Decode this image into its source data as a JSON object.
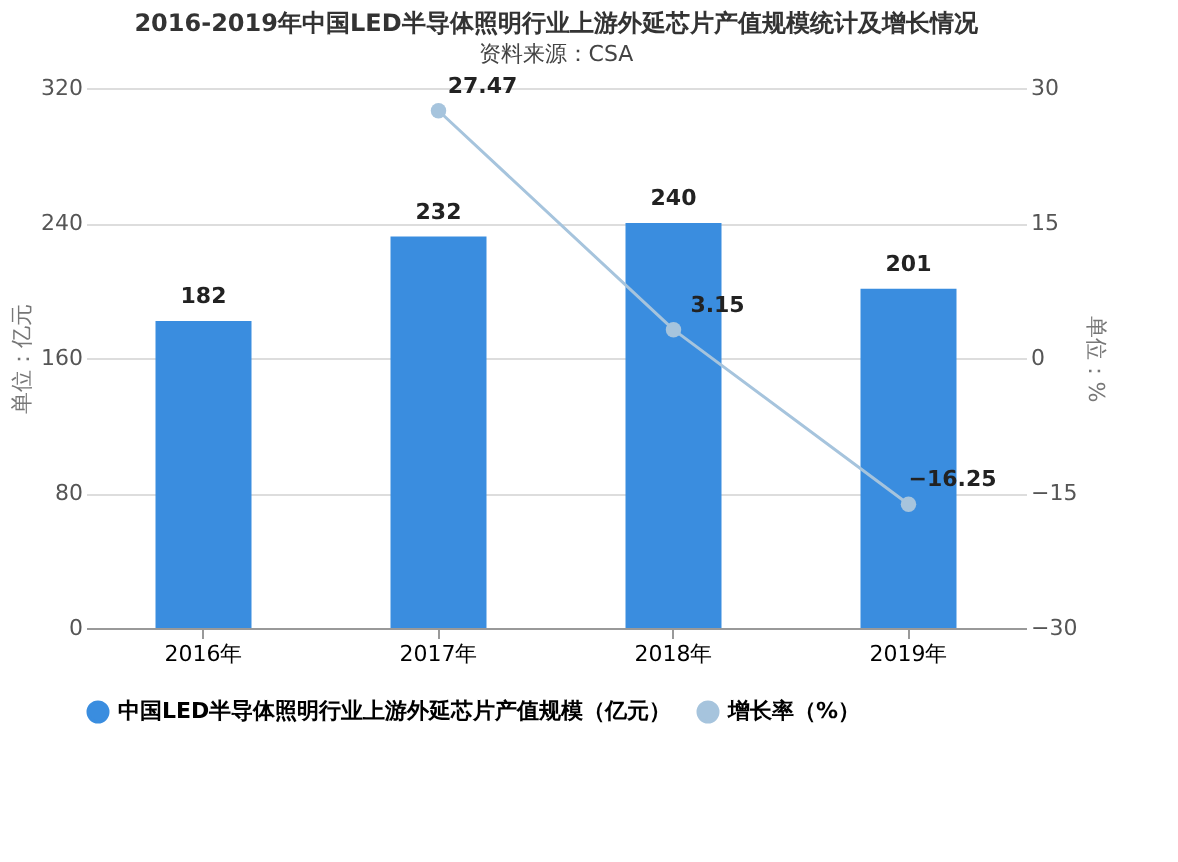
{
  "chart_data": {
    "type": "bar",
    "title": "2016-2019年中国LED半导体照明行业上游外延芯片产值规模统计及增长情况",
    "categories": [
      "2016年",
      "2017年",
      "2018年",
      "2019年"
    ],
    "series": [
      {
        "name": "中国LED半导体照明行业上游外延芯片产值规模（亿元）",
        "color": "#3a8ddf",
        "values": [
          182,
          232,
          240,
          201
        ]
      },
      {
        "name": "增长率（%）",
        "type": "line",
        "axis": "y2",
        "color": "#a6c4dd",
        "values": [
          null,
          27.47,
          3.15,
          -16.25
        ]
      }
    ],
    "ylabel": "单位：亿元",
    "y2label": "单位：%",
    "ylim": [
      0,
      320
    ],
    "yticks": [
      0,
      80,
      160,
      240,
      320
    ],
    "y2lim": [
      -30,
      30
    ],
    "y2ticks": [
      -30,
      -15,
      0,
      15,
      30
    ],
    "grid": "y",
    "legend": "bottom",
    "marker": "circle",
    "data_labels": true,
    "annotations": [
      "资料来源：CSA"
    ]
  }
}
